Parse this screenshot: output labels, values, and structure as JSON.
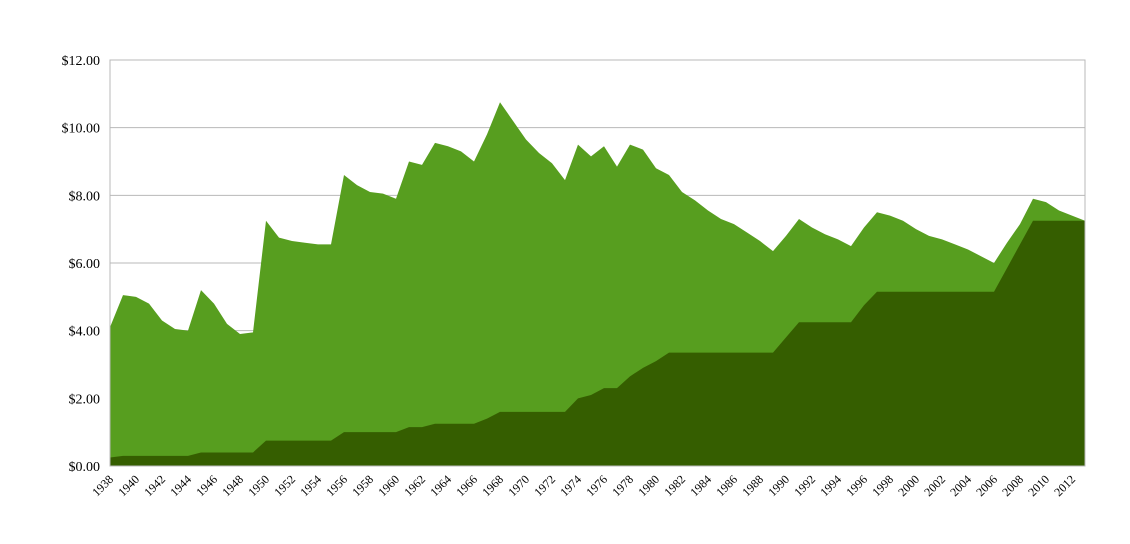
{
  "chart_data": {
    "type": "area",
    "title": "",
    "xlabel": "",
    "ylabel": "",
    "ylim": [
      0,
      12
    ],
    "xlim": [
      1938,
      2013
    ],
    "grid": true,
    "legend": "none",
    "y_ticks": [
      "$0.00",
      "$2.00",
      "$4.00",
      "$6.00",
      "$8.00",
      "$10.00",
      "$12.00"
    ],
    "x_ticks": [
      "1938",
      "1940",
      "1942",
      "1944",
      "1946",
      "1948",
      "1950",
      "1952",
      "1954",
      "1956",
      "1958",
      "1960",
      "1962",
      "1964",
      "1966",
      "1968",
      "1970",
      "1972",
      "1974",
      "1976",
      "1978",
      "1980",
      "1982",
      "1984",
      "1986",
      "1988",
      "1990",
      "1992",
      "1994",
      "1996",
      "1998",
      "2000",
      "2002",
      "2004",
      "2006",
      "2008",
      "2010",
      "2012"
    ],
    "x": [
      1938,
      1939,
      1940,
      1941,
      1942,
      1943,
      1944,
      1945,
      1946,
      1947,
      1948,
      1949,
      1950,
      1951,
      1952,
      1953,
      1954,
      1955,
      1956,
      1957,
      1958,
      1959,
      1960,
      1961,
      1962,
      1963,
      1964,
      1965,
      1966,
      1967,
      1968,
      1969,
      1970,
      1971,
      1972,
      1973,
      1974,
      1975,
      1976,
      1977,
      1978,
      1979,
      1980,
      1981,
      1982,
      1983,
      1984,
      1985,
      1986,
      1987,
      1988,
      1989,
      1990,
      1991,
      1992,
      1993,
      1994,
      1995,
      1996,
      1997,
      1998,
      1999,
      2000,
      2001,
      2002,
      2003,
      2004,
      2005,
      2006,
      2007,
      2008,
      2009,
      2010,
      2011,
      2012,
      2013
    ],
    "series": [
      {
        "key": "background",
        "color": "#579e1f",
        "values": [
          4.1,
          5.05,
          5.0,
          4.8,
          4.3,
          4.05,
          4.0,
          5.2,
          4.8,
          4.2,
          3.9,
          3.95,
          7.25,
          6.75,
          6.65,
          6.6,
          6.55,
          6.55,
          8.6,
          8.3,
          8.1,
          8.05,
          7.9,
          9.0,
          8.9,
          9.55,
          9.45,
          9.3,
          9.0,
          9.8,
          10.75,
          10.2,
          9.65,
          9.25,
          8.95,
          8.45,
          9.5,
          9.15,
          9.45,
          8.85,
          9.5,
          9.35,
          8.8,
          8.6,
          8.1,
          7.85,
          7.55,
          7.3,
          7.15,
          6.9,
          6.65,
          6.35,
          6.8,
          7.3,
          7.05,
          6.85,
          6.7,
          6.5,
          7.05,
          7.5,
          7.4,
          7.25,
          7.0,
          6.8,
          6.7,
          6.55,
          6.4,
          6.2,
          6.0,
          6.6,
          7.15,
          7.9,
          7.8,
          7.55,
          7.4,
          7.25
        ]
      },
      {
        "key": "foreground",
        "color": "#355e00",
        "values": [
          0.25,
          0.3,
          0.3,
          0.3,
          0.3,
          0.3,
          0.3,
          0.4,
          0.4,
          0.4,
          0.4,
          0.4,
          0.75,
          0.75,
          0.75,
          0.75,
          0.75,
          0.75,
          1.0,
          1.0,
          1.0,
          1.0,
          1.0,
          1.15,
          1.15,
          1.25,
          1.25,
          1.25,
          1.25,
          1.4,
          1.6,
          1.6,
          1.6,
          1.6,
          1.6,
          1.6,
          2.0,
          2.1,
          2.3,
          2.3,
          2.65,
          2.9,
          3.1,
          3.35,
          3.35,
          3.35,
          3.35,
          3.35,
          3.35,
          3.35,
          3.35,
          3.35,
          3.8,
          4.25,
          4.25,
          4.25,
          4.25,
          4.25,
          4.75,
          5.15,
          5.15,
          5.15,
          5.15,
          5.15,
          5.15,
          5.15,
          5.15,
          5.15,
          5.15,
          5.85,
          6.55,
          7.25,
          7.25,
          7.25,
          7.25,
          7.25
        ]
      }
    ]
  }
}
